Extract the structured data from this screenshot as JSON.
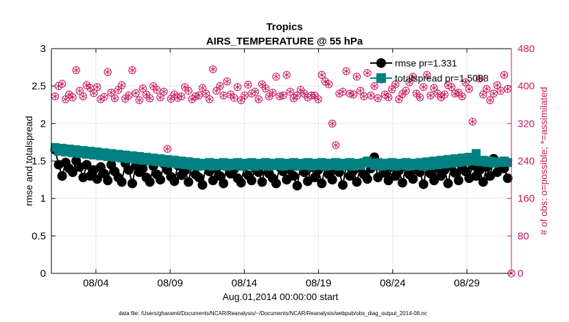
{
  "chart_data": {
    "type": "line",
    "title": "Tropics",
    "subtitle": "AIRS_TEMPERATURE @ 55 hPa",
    "xlabel": "Aug.01,2014 00:00:00 start",
    "ylabel_left": "rmse and totalspread",
    "ylabel_right": "# of obs: o=possible; *=assimilated",
    "footnote": "data file: /Users/gharamti/Documents/NCAR/Reanalysis/~/Documents/NCAR/Reanalysis/webpub/obs_diag_output_2014-08.nc",
    "xlim": [
      1.0,
      32.0
    ],
    "ylim_left": [
      0,
      3
    ],
    "ylim_right": [
      0,
      480
    ],
    "x_ticks": [
      4,
      9,
      14,
      19,
      24,
      29
    ],
    "x_tick_labels": [
      "08/04",
      "08/09",
      "08/14",
      "08/19",
      "08/24",
      "08/29"
    ],
    "y_left_ticks": [
      0,
      0.5,
      1,
      1.5,
      2,
      2.5,
      3
    ],
    "y_left_tick_labels": [
      "0",
      "0.5",
      "1",
      "1.5",
      "2",
      "2.5",
      "3"
    ],
    "y_right_ticks": [
      0,
      80,
      160,
      240,
      320,
      400,
      480
    ],
    "y_right_tick_labels": [
      "0",
      "80",
      "160",
      "240",
      "320",
      "400",
      "480"
    ],
    "colors": {
      "rmse": "#000000",
      "totalspread": "#008080",
      "obs": "#c8195f",
      "grid": "#e6e6e6"
    },
    "legend": {
      "position": "top-right",
      "entries": [
        "rmse pr=1.331",
        "totalspread pr=1.5088"
      ]
    },
    "series": [
      {
        "name": "rmse",
        "axis": "left",
        "values": [
          1.65,
          1.45,
          1.3,
          1.48,
          1.4,
          1.35,
          1.5,
          1.42,
          1.28,
          1.45,
          1.3,
          1.38,
          1.26,
          1.42,
          1.33,
          1.24,
          1.45,
          1.36,
          1.28,
          1.22,
          1.47,
          1.38,
          1.2,
          1.44,
          1.35,
          1.4,
          1.28,
          1.22,
          1.43,
          1.32,
          1.25,
          1.46,
          1.38,
          1.29,
          1.23,
          1.44,
          1.31,
          1.37,
          1.22,
          1.45,
          1.32,
          1.28,
          1.18,
          1.44,
          1.36,
          1.24,
          1.4,
          1.3,
          1.2,
          1.45,
          1.33,
          1.39,
          1.27,
          1.21,
          1.43,
          1.31,
          1.24,
          1.4,
          1.35,
          1.22,
          1.46,
          1.33,
          1.27,
          1.2,
          1.42,
          1.36,
          1.25,
          1.4,
          1.3,
          1.17,
          1.44,
          1.35,
          1.23,
          1.42,
          1.28,
          1.38,
          1.2,
          1.43,
          1.32,
          1.25,
          1.4,
          1.35,
          1.18,
          1.44,
          1.3,
          1.37,
          1.22,
          1.41,
          1.32,
          1.26,
          1.4,
          1.55,
          1.28,
          1.46,
          1.34,
          1.24,
          1.42,
          1.3,
          1.37,
          1.21,
          1.43,
          1.32,
          1.26,
          1.4,
          1.35,
          1.19,
          1.44,
          1.33,
          1.24,
          1.41,
          1.3,
          1.38,
          1.2,
          1.43,
          1.34,
          1.24,
          1.41,
          1.36,
          1.27,
          1.44,
          1.3,
          1.38,
          1.22,
          1.42,
          1.3,
          1.53,
          1.35,
          1.47,
          1.4,
          1.27
        ]
      },
      {
        "name": "totalspread",
        "axis": "left",
        "values": [
          1.68,
          1.63,
          1.67,
          1.62,
          1.66,
          1.61,
          1.65,
          1.6,
          1.64,
          1.59,
          1.63,
          1.58,
          1.62,
          1.57,
          1.61,
          1.56,
          1.6,
          1.55,
          1.59,
          1.54,
          1.58,
          1.53,
          1.57,
          1.52,
          1.56,
          1.51,
          1.55,
          1.5,
          1.54,
          1.49,
          1.53,
          1.48,
          1.52,
          1.47,
          1.51,
          1.46,
          1.5,
          1.45,
          1.49,
          1.44,
          1.48,
          1.43,
          1.47,
          1.44,
          1.48,
          1.43,
          1.47,
          1.44,
          1.48,
          1.43,
          1.47,
          1.44,
          1.48,
          1.43,
          1.47,
          1.44,
          1.48,
          1.43,
          1.47,
          1.44,
          1.48,
          1.43,
          1.47,
          1.44,
          1.48,
          1.43,
          1.47,
          1.44,
          1.48,
          1.43,
          1.47,
          1.44,
          1.48,
          1.43,
          1.47,
          1.44,
          1.48,
          1.43,
          1.47,
          1.44,
          1.48,
          1.43,
          1.47,
          1.44,
          1.48,
          1.43,
          1.47,
          1.44,
          1.48,
          1.5,
          1.47,
          1.44,
          1.48,
          1.43,
          1.47,
          1.44,
          1.48,
          1.43,
          1.47,
          1.44,
          1.48,
          1.43,
          1.47,
          1.44,
          1.48,
          1.43,
          1.49,
          1.44,
          1.5,
          1.45,
          1.51,
          1.46,
          1.52,
          1.47,
          1.53,
          1.48,
          1.54,
          1.49,
          1.55,
          1.5,
          1.6,
          1.49,
          1.51,
          1.48,
          1.5,
          1.47,
          1.49,
          1.48,
          1.5,
          1.48
        ]
      },
      {
        "name": "obs_possible",
        "axis": "right",
        "values": [
          378,
          400,
          405,
          372,
          382,
          376,
          434,
          390,
          378,
          402,
          396,
          385,
          398,
          372,
          377,
          430,
          386,
          374,
          392,
          402,
          373,
          380,
          434,
          385,
          370,
          395,
          382,
          374,
          400,
          392,
          376,
          388,
          266,
          373,
          382,
          375,
          378,
          398,
          390,
          372,
          378,
          380,
          396,
          384,
          372,
          436,
          390,
          400,
          380,
          410,
          382,
          375,
          398,
          370,
          380,
          403,
          384,
          388,
          372,
          404,
          395,
          378,
          386,
          420,
          378,
          380,
          424,
          388,
          374,
          380,
          392,
          384,
          376,
          380,
          380,
          372,
          424,
          410,
          404,
          320,
          274,
          384,
          388,
          432,
          384,
          382,
          420,
          390,
          378,
          428,
          380,
          400,
          374,
          414,
          382,
          376,
          393,
          404,
          372,
          383,
          390,
          408,
          420,
          384,
          376,
          398,
          424,
          380,
          396,
          384,
          376,
          382,
          402,
          398,
          384,
          386,
          378,
          408,
          394,
          324,
          208,
          416,
          382,
          394,
          370,
          384,
          402,
          390,
          424,
          394
        ]
      },
      {
        "name": "obs_assimilated",
        "axis": "right",
        "values": [
          374,
          396,
          401,
          368,
          378,
          372,
          430,
          386,
          374,
          398,
          392,
          381,
          394,
          368,
          373,
          426,
          382,
          370,
          388,
          398,
          369,
          376,
          430,
          381,
          366,
          391,
          378,
          370,
          396,
          388,
          372,
          384,
          262,
          369,
          378,
          371,
          374,
          394,
          386,
          368,
          374,
          376,
          392,
          380,
          368,
          432,
          386,
          396,
          376,
          406,
          378,
          371,
          394,
          366,
          376,
          399,
          380,
          384,
          368,
          400,
          391,
          374,
          382,
          416,
          374,
          376,
          420,
          384,
          370,
          376,
          388,
          380,
          372,
          376,
          376,
          368,
          420,
          406,
          400,
          316,
          270,
          380,
          384,
          428,
          380,
          378,
          416,
          386,
          374,
          424,
          376,
          396,
          370,
          410,
          378,
          372,
          389,
          400,
          368,
          379,
          386,
          404,
          416,
          380,
          372,
          394,
          420,
          376,
          392,
          380,
          372,
          378,
          398,
          394,
          380,
          382,
          374,
          404,
          390,
          320,
          204,
          412,
          378,
          390,
          366,
          380,
          398,
          386,
          420,
          390
        ]
      }
    ]
  }
}
